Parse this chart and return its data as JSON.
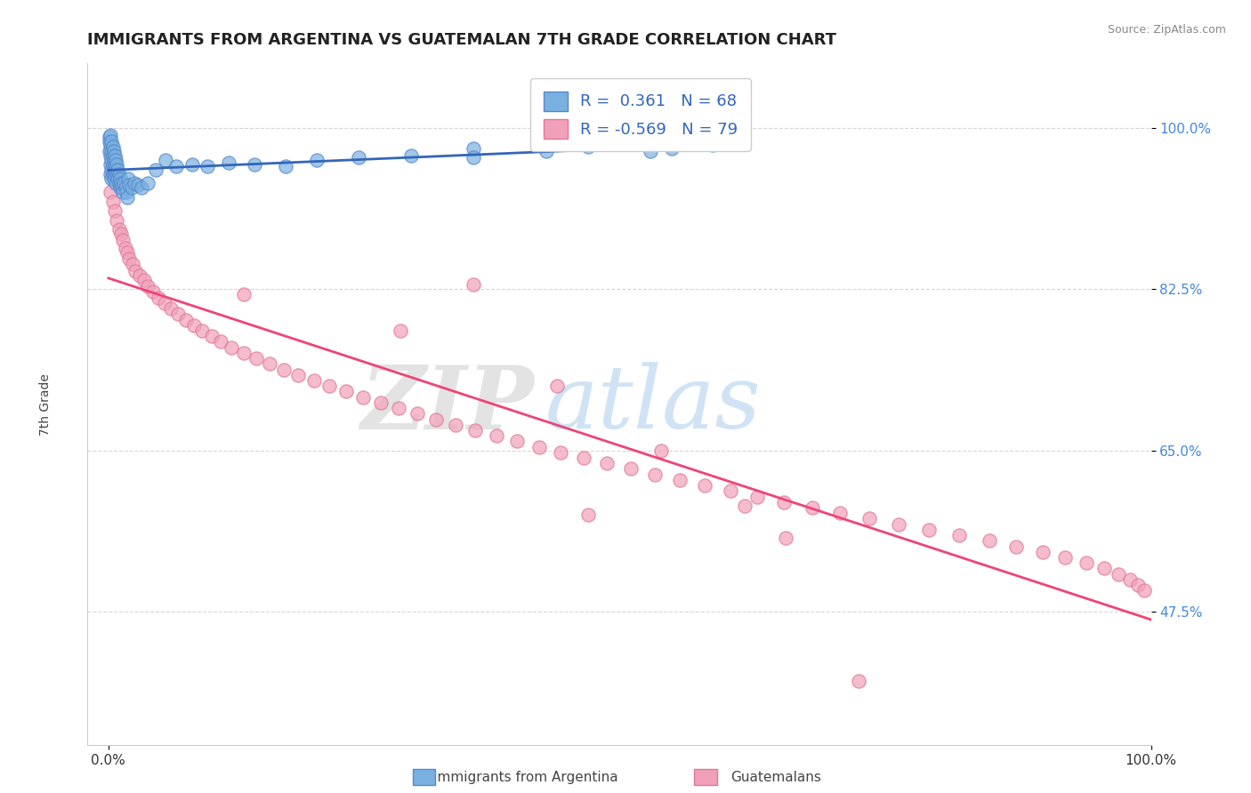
{
  "title": "IMMIGRANTS FROM ARGENTINA VS GUATEMALAN 7TH GRADE CORRELATION CHART",
  "source": "Source: ZipAtlas.com",
  "ylabel": "7th Grade",
  "xlim": [
    -0.02,
    1.0
  ],
  "ylim": [
    0.33,
    1.07
  ],
  "xtick_positions": [
    0.0,
    1.0
  ],
  "xtick_labels": [
    "0.0%",
    "100.0%"
  ],
  "ytick_positions": [
    0.475,
    0.65,
    0.825,
    1.0
  ],
  "ytick_labels": [
    "47.5%",
    "65.0%",
    "82.5%",
    "100.0%"
  ],
  "grid_color": "#cccccc",
  "background_color": "#ffffff",
  "blue_color": "#7ab0e0",
  "pink_color": "#f0a0b8",
  "blue_edge": "#5588cc",
  "pink_edge": "#e07898",
  "blue_line_color": "#3366bb",
  "pink_line_color": "#ee4477",
  "legend_line1": "R =  0.361   N = 68",
  "legend_line2": "R = -0.569   N = 79",
  "watermark_zip": "ZIP",
  "watermark_atlas": "atlas",
  "argentina_x": [
    0.001,
    0.001,
    0.001,
    0.002,
    0.002,
    0.002,
    0.002,
    0.002,
    0.003,
    0.003,
    0.003,
    0.003,
    0.003,
    0.004,
    0.004,
    0.004,
    0.004,
    0.005,
    0.005,
    0.005,
    0.005,
    0.006,
    0.006,
    0.006,
    0.007,
    0.007,
    0.007,
    0.008,
    0.008,
    0.009,
    0.009,
    0.01,
    0.01,
    0.011,
    0.011,
    0.012,
    0.013,
    0.014,
    0.015,
    0.016,
    0.017,
    0.018,
    0.019,
    0.02,
    0.022,
    0.025,
    0.028,
    0.032,
    0.038,
    0.045,
    0.055,
    0.065,
    0.08,
    0.095,
    0.115,
    0.14,
    0.17,
    0.2,
    0.24,
    0.29,
    0.35,
    0.35,
    0.42,
    0.46,
    0.5,
    0.52,
    0.54,
    0.58
  ],
  "argentina_y": [
    0.99,
    0.985,
    0.975,
    0.992,
    0.982,
    0.97,
    0.96,
    0.95,
    0.985,
    0.975,
    0.965,
    0.955,
    0.945,
    0.98,
    0.97,
    0.96,
    0.95,
    0.975,
    0.965,
    0.955,
    0.945,
    0.97,
    0.96,
    0.95,
    0.965,
    0.955,
    0.94,
    0.96,
    0.95,
    0.955,
    0.945,
    0.95,
    0.94,
    0.945,
    0.935,
    0.94,
    0.935,
    0.93,
    0.94,
    0.935,
    0.93,
    0.925,
    0.945,
    0.938,
    0.935,
    0.94,
    0.938,
    0.935,
    0.94,
    0.955,
    0.965,
    0.958,
    0.96,
    0.958,
    0.962,
    0.96,
    0.958,
    0.965,
    0.968,
    0.97,
    0.978,
    0.968,
    0.975,
    0.98,
    0.985,
    0.975,
    0.978,
    0.982
  ],
  "guatemalan_x": [
    0.002,
    0.004,
    0.006,
    0.008,
    0.01,
    0.012,
    0.014,
    0.016,
    0.018,
    0.02,
    0.023,
    0.026,
    0.03,
    0.034,
    0.038,
    0.043,
    0.048,
    0.054,
    0.06,
    0.067,
    0.074,
    0.082,
    0.09,
    0.099,
    0.108,
    0.118,
    0.13,
    0.142,
    0.155,
    0.168,
    0.182,
    0.197,
    0.212,
    0.228,
    0.244,
    0.261,
    0.278,
    0.296,
    0.314,
    0.333,
    0.352,
    0.372,
    0.392,
    0.413,
    0.434,
    0.456,
    0.478,
    0.501,
    0.524,
    0.548,
    0.572,
    0.597,
    0.622,
    0.648,
    0.675,
    0.702,
    0.73,
    0.758,
    0.787,
    0.816,
    0.845,
    0.871,
    0.896,
    0.918,
    0.938,
    0.955,
    0.969,
    0.98,
    0.988,
    0.994,
    0.13,
    0.28,
    0.35,
    0.43,
    0.46,
    0.53,
    0.61,
    0.65,
    0.72
  ],
  "guatemalan_y": [
    0.93,
    0.92,
    0.91,
    0.9,
    0.89,
    0.885,
    0.878,
    0.87,
    0.865,
    0.858,
    0.852,
    0.845,
    0.84,
    0.835,
    0.828,
    0.822,
    0.816,
    0.81,
    0.804,
    0.798,
    0.792,
    0.786,
    0.78,
    0.774,
    0.768,
    0.762,
    0.756,
    0.75,
    0.744,
    0.738,
    0.732,
    0.726,
    0.72,
    0.714,
    0.708,
    0.702,
    0.696,
    0.69,
    0.684,
    0.678,
    0.672,
    0.666,
    0.66,
    0.654,
    0.648,
    0.642,
    0.636,
    0.63,
    0.624,
    0.618,
    0.612,
    0.606,
    0.6,
    0.594,
    0.588,
    0.582,
    0.576,
    0.57,
    0.564,
    0.558,
    0.552,
    0.546,
    0.54,
    0.534,
    0.528,
    0.522,
    0.516,
    0.51,
    0.504,
    0.498,
    0.82,
    0.78,
    0.83,
    0.72,
    0.58,
    0.65,
    0.59,
    0.555,
    0.4
  ]
}
